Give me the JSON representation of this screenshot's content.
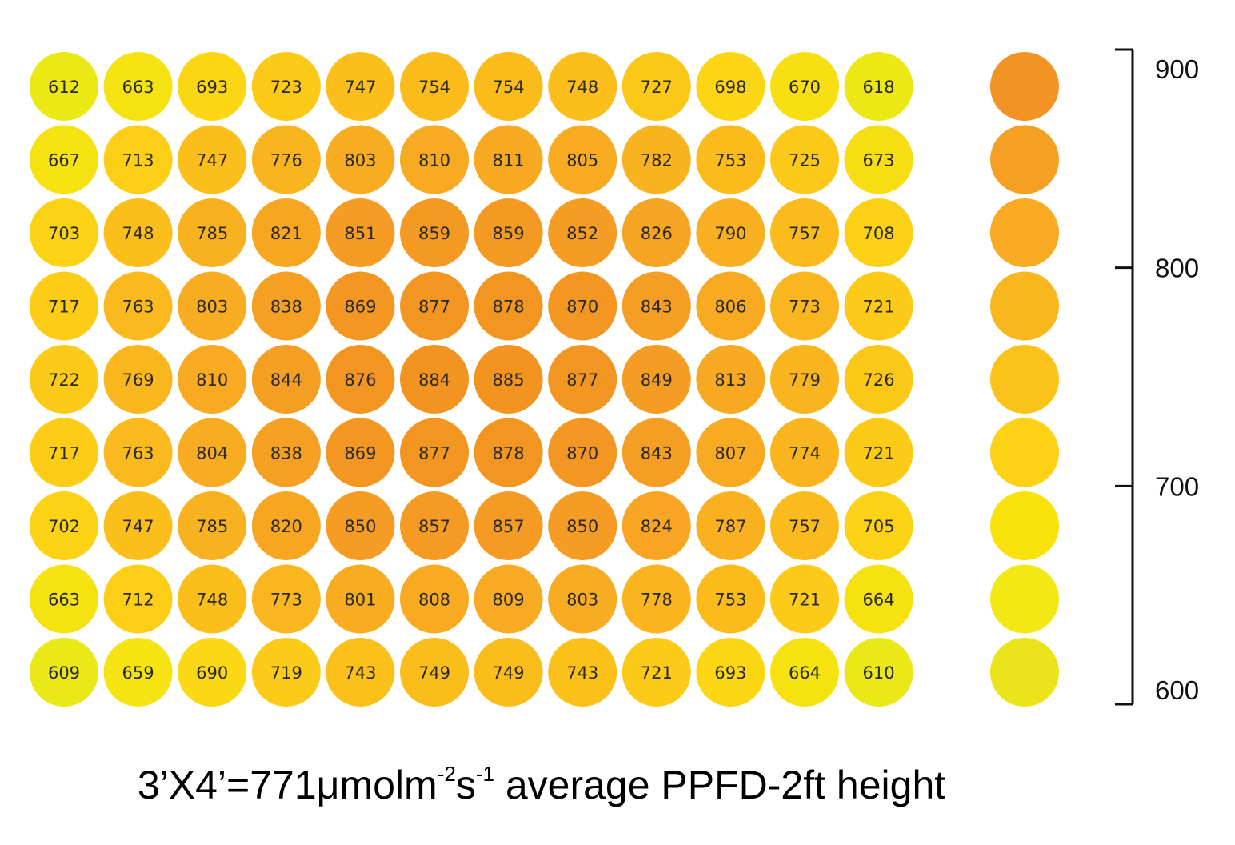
{
  "chart_data": {
    "type": "heatmap",
    "rows": 9,
    "cols": 12,
    "values": [
      [
        612,
        663,
        693,
        723,
        747,
        754,
        754,
        748,
        727,
        698,
        670,
        618
      ],
      [
        667,
        713,
        747,
        776,
        803,
        810,
        811,
        805,
        782,
        753,
        725,
        673
      ],
      [
        703,
        748,
        785,
        821,
        851,
        859,
        859,
        852,
        826,
        790,
        757,
        708
      ],
      [
        717,
        763,
        803,
        838,
        869,
        877,
        878,
        870,
        843,
        806,
        773,
        721
      ],
      [
        722,
        769,
        810,
        844,
        876,
        884,
        885,
        877,
        849,
        813,
        779,
        726
      ],
      [
        717,
        763,
        804,
        838,
        869,
        877,
        878,
        870,
        843,
        807,
        774,
        721
      ],
      [
        702,
        747,
        785,
        820,
        850,
        857,
        857,
        850,
        824,
        787,
        757,
        705
      ],
      [
        663,
        712,
        748,
        773,
        801,
        808,
        809,
        803,
        778,
        753,
        721,
        664
      ],
      [
        609,
        659,
        690,
        719,
        743,
        749,
        749,
        743,
        721,
        693,
        664,
        610
      ]
    ],
    "color_scale": {
      "range": [
        600,
        900
      ],
      "ticks": [
        900,
        800,
        700,
        600
      ],
      "swatches": [
        "#f39324",
        "#f59f23",
        "#f7aa22",
        "#f9b71e",
        "#fbc21a",
        "#fcd116",
        "#f9e208",
        "#f1e814",
        "#ebe41a"
      ],
      "legend_position": "right"
    }
  },
  "caption": {
    "prefix": "3’X4’=771μmolm",
    "sup1": "-2",
    "mid": "s",
    "sup2": "-1",
    "suffix": " average PPFD-2ft height"
  }
}
